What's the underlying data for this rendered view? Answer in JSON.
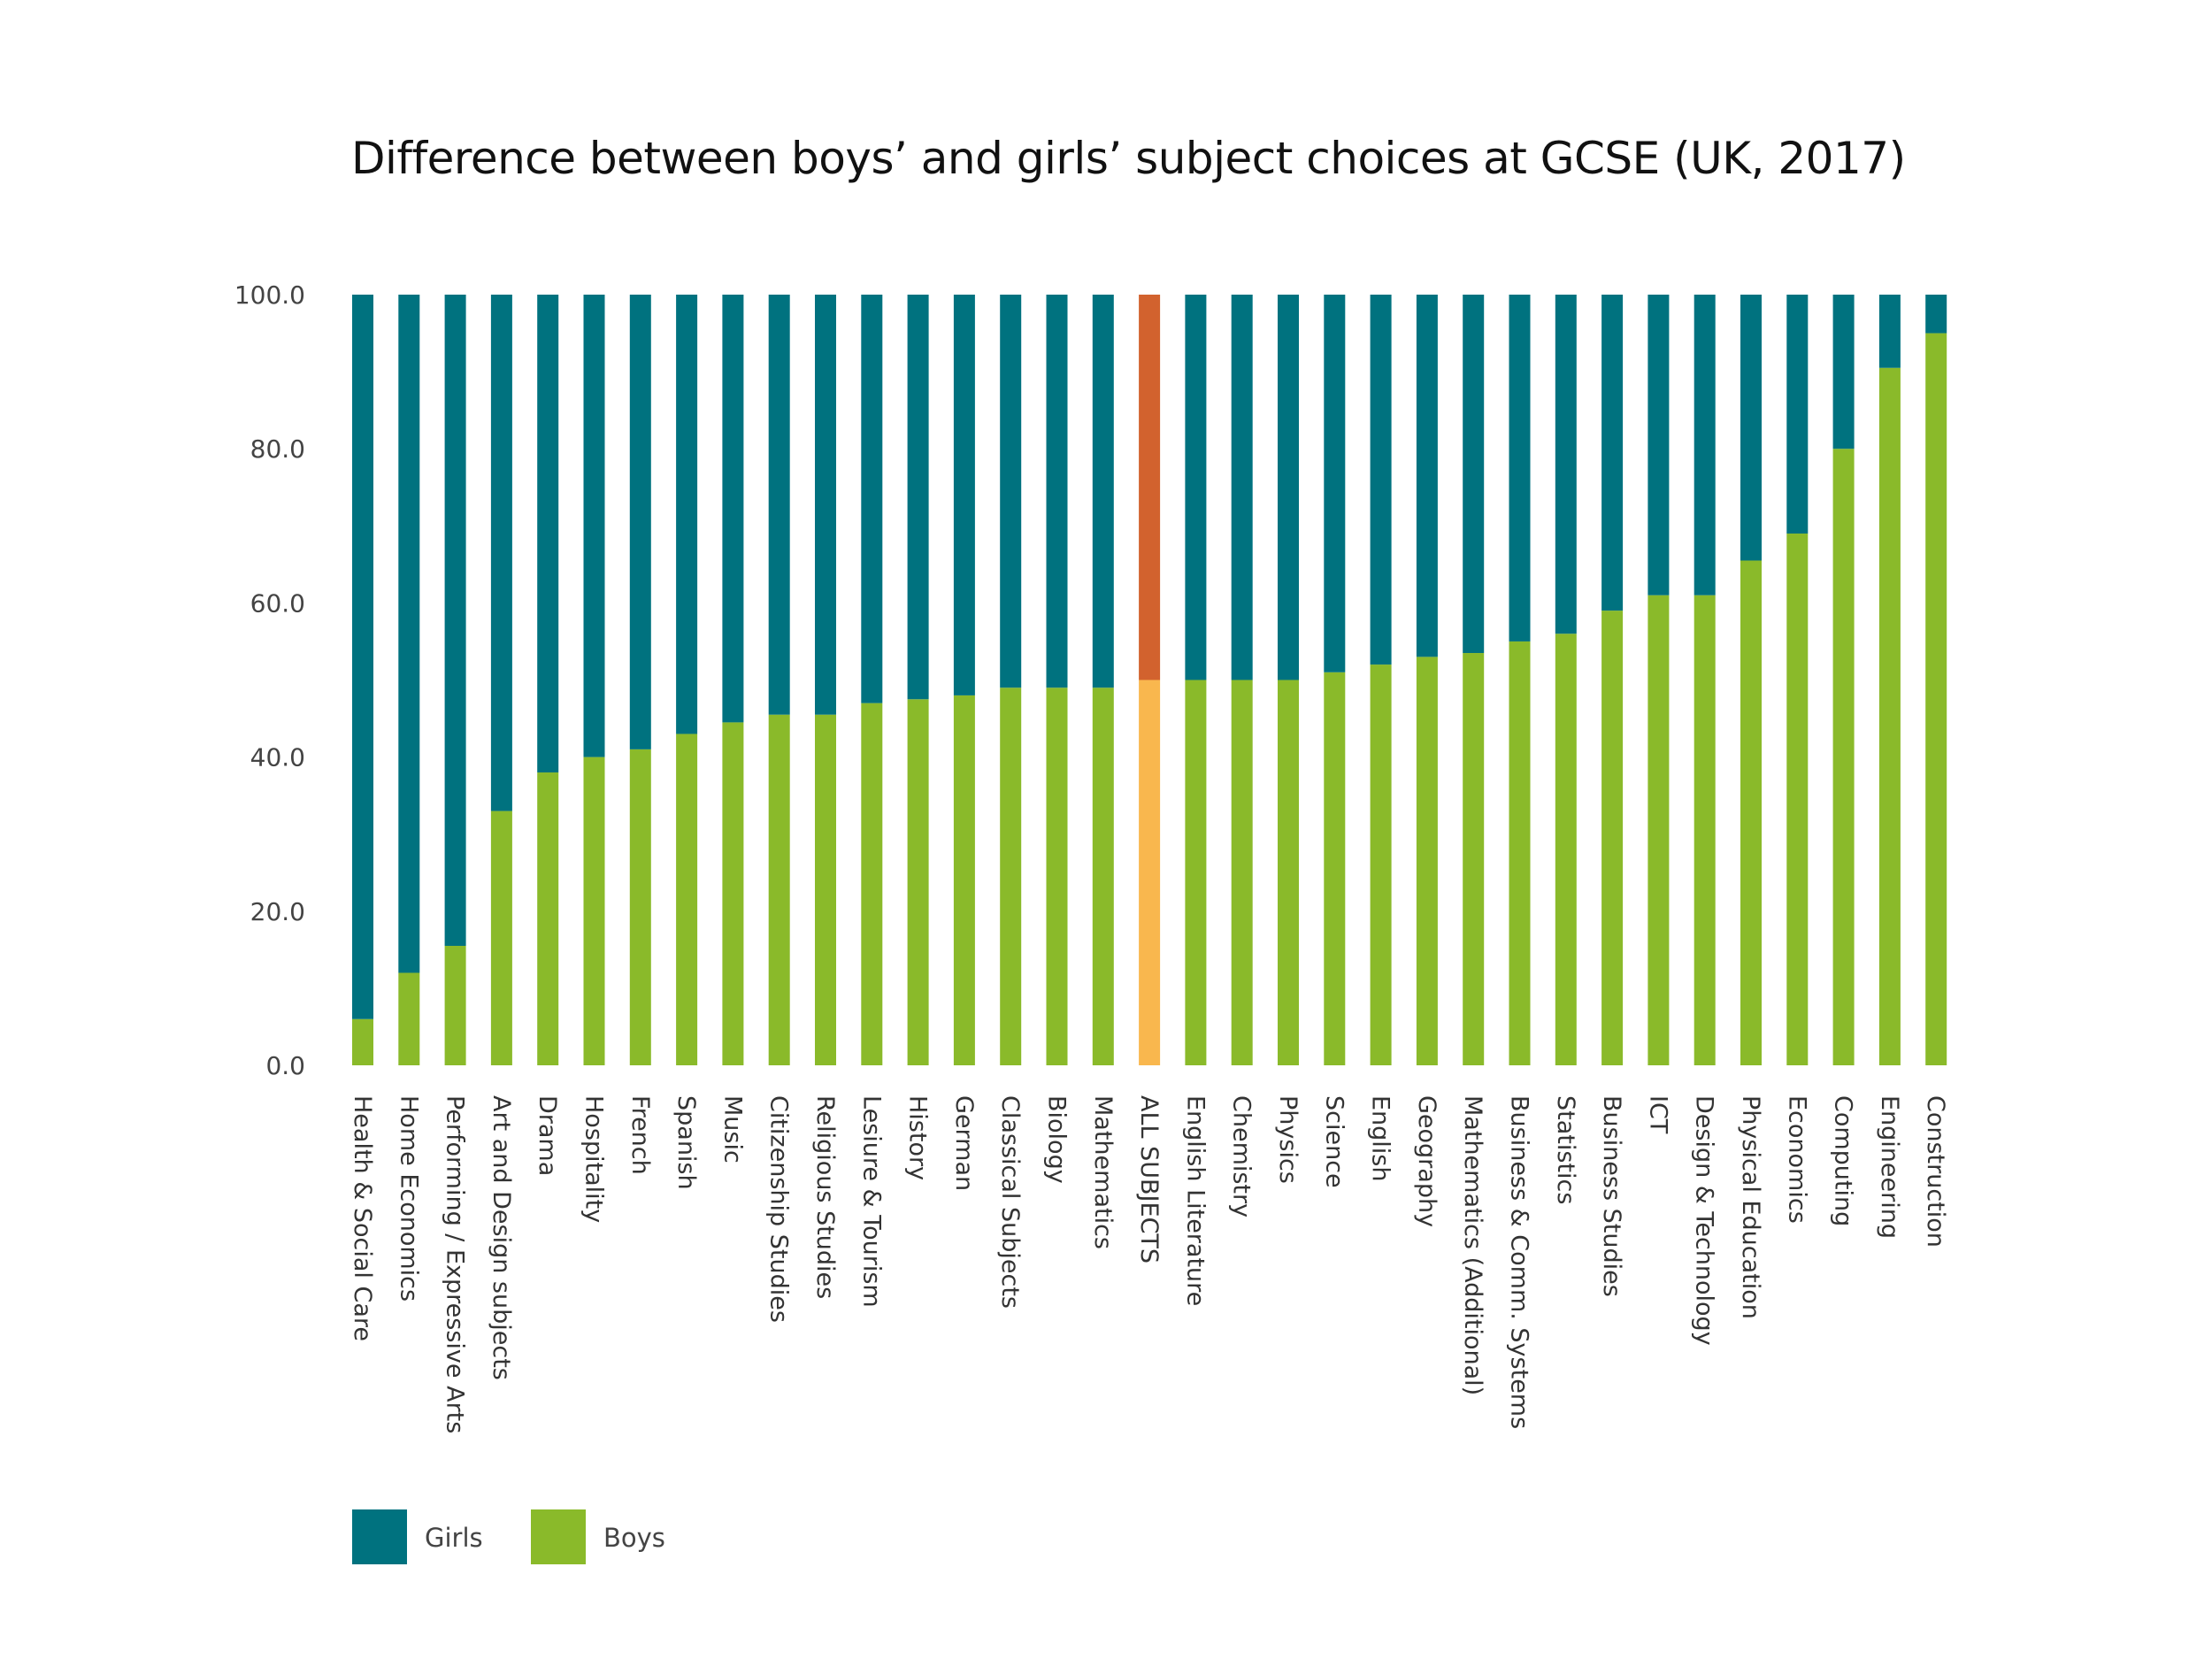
{
  "chart_data": {
    "type": "bar",
    "stacked": true,
    "title": "Difference between boys’ and girls’ subject choices at GCSE (UK, 2017)",
    "xlabel": "",
    "ylabel": "",
    "ylim": [
      0,
      100
    ],
    "yticks": [
      "0.0",
      "20.0",
      "40.0",
      "60.0",
      "80.0",
      "100.0"
    ],
    "categories": [
      "Health & Social Care",
      "Home Economics",
      "Performing / Expressive Arts",
      "Art and Design subjects",
      "Drama",
      "Hospitality",
      "French",
      "Spanish",
      "Music",
      "Citizenship Studies",
      "Religious Studies",
      "Lesiure & Tourism",
      "History",
      "German",
      "Classical Subjects",
      "Biology",
      "Mathematics",
      "ALL SUBJECTS",
      "English Literature",
      "Chemistry",
      "Physics",
      "Science",
      "English",
      "Geography",
      "Mathematics (Additional)",
      "Business & Comm. Systems",
      "Statistics",
      "Business Studies",
      "ICT",
      "Design & Technology",
      "Physical Education",
      "Economics",
      "Computing",
      "Engineering",
      "Construction"
    ],
    "series": [
      {
        "name": "Boys",
        "color": "#8aba2a",
        "highlight_color": "#f9b74e",
        "values": [
          6,
          12,
          15.5,
          33,
          38,
          40,
          41,
          43,
          44.5,
          45.5,
          45.5,
          47,
          47.5,
          48,
          49,
          49,
          49,
          50,
          50,
          50,
          50,
          51,
          52,
          53,
          53.5,
          55,
          56,
          59,
          61,
          61,
          65.5,
          69,
          80,
          90.5,
          95
        ]
      },
      {
        "name": "Girls",
        "color": "#00727f",
        "highlight_color": "#d2622e",
        "values": [
          94,
          88,
          84.5,
          67,
          62,
          60,
          59,
          57,
          55.5,
          54.5,
          54.5,
          53,
          52.5,
          52,
          51,
          51,
          51,
          50,
          50,
          50,
          50,
          49,
          48,
          47,
          46.5,
          45,
          44,
          41,
          39,
          39,
          34.5,
          31,
          20,
          9.5,
          5
        ]
      }
    ],
    "highlight_category": "ALL SUBJECTS",
    "legend": {
      "position": "bottom-left",
      "entries": [
        "Girls",
        "Boys"
      ]
    }
  }
}
